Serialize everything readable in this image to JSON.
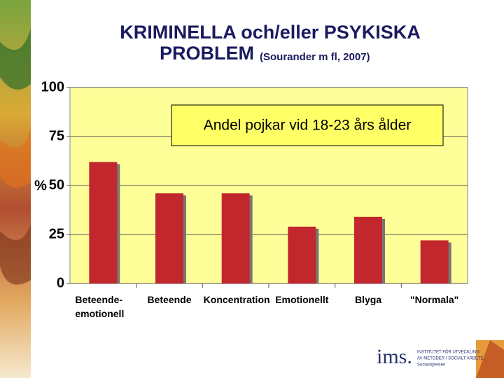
{
  "chart_data": {
    "type": "bar",
    "title": "KRIMINELLA och/eller PSYKISKA",
    "title_line2": "PROBLEM",
    "source": "(Sourander m fl, 2007)",
    "y_label": "%",
    "annotation": "Andel pojkar vid 18-23 års ålder",
    "categories": [
      "Beteende-emotionell",
      "Beteende",
      "Koncentration",
      "Emotionellt",
      "Blyga",
      "\"Normala\""
    ],
    "values": [
      62,
      46,
      46,
      29,
      34,
      22
    ],
    "color": "#c1272d",
    "ylim": [
      0,
      100
    ],
    "yticks": [
      0,
      25,
      50,
      75,
      100
    ],
    "grid": true
  },
  "logo": {
    "name": "ims.",
    "lines": [
      "INSTITUTET FÖR UTVECKLING",
      "AV METODER I SOCIALT ARBETE",
      "Socialstyrelsen"
    ]
  }
}
